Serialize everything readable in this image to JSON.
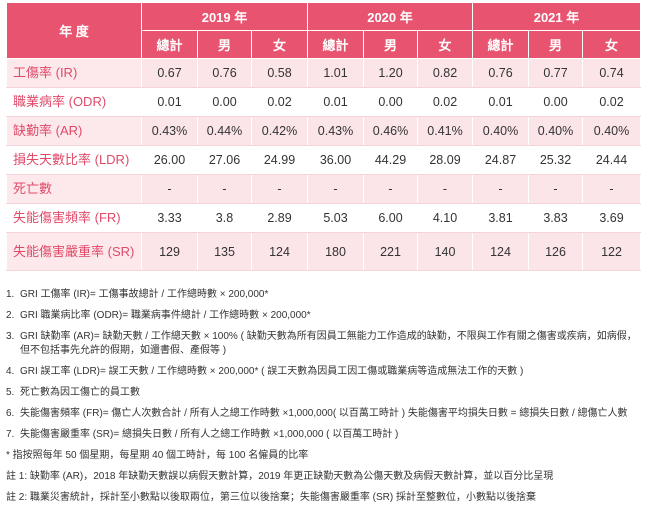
{
  "table": {
    "year_header": "年 度",
    "years": [
      "2019 年",
      "2020 年",
      "2021 年"
    ],
    "sub": [
      "總計",
      "男",
      "女"
    ],
    "rows": [
      {
        "label": "工傷率 (IR)",
        "values": [
          "0.67",
          "0.76",
          "0.58",
          "1.01",
          "1.20",
          "0.82",
          "0.76",
          "0.77",
          "0.74"
        ]
      },
      {
        "label": "職業病率 (ODR)",
        "values": [
          "0.01",
          "0.00",
          "0.02",
          "0.01",
          "0.00",
          "0.02",
          "0.01",
          "0.00",
          "0.02"
        ]
      },
      {
        "label": "缺勤率 (AR)",
        "values": [
          "0.43%",
          "0.44%",
          "0.42%",
          "0.43%",
          "0.46%",
          "0.41%",
          "0.40%",
          "0.40%",
          "0.40%"
        ]
      },
      {
        "label": "損失天數比率 (LDR)",
        "values": [
          "26.00",
          "27.06",
          "24.99",
          "36.00",
          "44.29",
          "28.09",
          "24.87",
          "25.32",
          "24.44"
        ]
      },
      {
        "label": "死亡數",
        "values": [
          "-",
          "-",
          "-",
          "-",
          "-",
          "-",
          "-",
          "-",
          "-"
        ]
      },
      {
        "label": "失能傷害頻率 (FR)",
        "values": [
          "3.33",
          "3.8",
          "2.89",
          "5.03",
          "6.00",
          "4.10",
          "3.81",
          "3.83",
          "3.69"
        ]
      },
      {
        "label": "失能傷害嚴重率 (SR)",
        "values": [
          "129",
          "135",
          "124",
          "180",
          "221",
          "140",
          "124",
          "126",
          "122"
        ]
      }
    ]
  },
  "notes": {
    "items": [
      {
        "num": "1.",
        "text": "GRI 工傷率 (IR)= 工傷事故總計 / 工作總時數 × 200,000*"
      },
      {
        "num": "2.",
        "text": "GRI 職業病比率 (ODR)= 職業病事件總計 / 工作總時數 × 200,000*"
      },
      {
        "num": "3.",
        "text": "GRI 缺勤率 (AR)= 缺勤天數 / 工作總天數 × 100% ( 缺勤天數為所有因員工無能力工作造成的缺勤，不限與工作有關之傷害或疾病，如病假，但不包括事先允許的假期，如還書假、產假等 )"
      },
      {
        "num": "4.",
        "text": "GRI 誤工率 (LDR)= 誤工天數 / 工作總時數 × 200,000* ( 誤工天數為因員工因工傷或職業病等造成無法工作的天數 )"
      },
      {
        "num": "5.",
        "text": "死亡數為因工傷亡的員工數"
      },
      {
        "num": "6.",
        "text": "失能傷害頻率 (FR)= 傷亡人次數合計 / 所有人之總工作時數 ×1,000,000( 以百萬工時計 ) 失能傷害平均損失日數 = 總損失日數 / 總傷亡人數"
      },
      {
        "num": "7.",
        "text": "失能傷害嚴重率 (SR)= 總損失日數 / 所有人之總工作時數 ×1,000,000 ( 以百萬工時計 )"
      }
    ],
    "star": "* 指按照每年 50 個星期，每星期 40 個工時計，每 100 名僱員的比率",
    "remark1": "註 1: 缺勤率 (AR)，2018 年缺勤天數誤以病假天數計算，2019 年更正缺勤天數為公傷天數及病假天數計算，並以百分比呈現",
    "remark2": "註 2: 職業災害統計，採計至小數點以後取兩位，第三位以後捨棄；失能傷害嚴重率 (SR) 採計至整數位，小數點以後捨棄"
  }
}
